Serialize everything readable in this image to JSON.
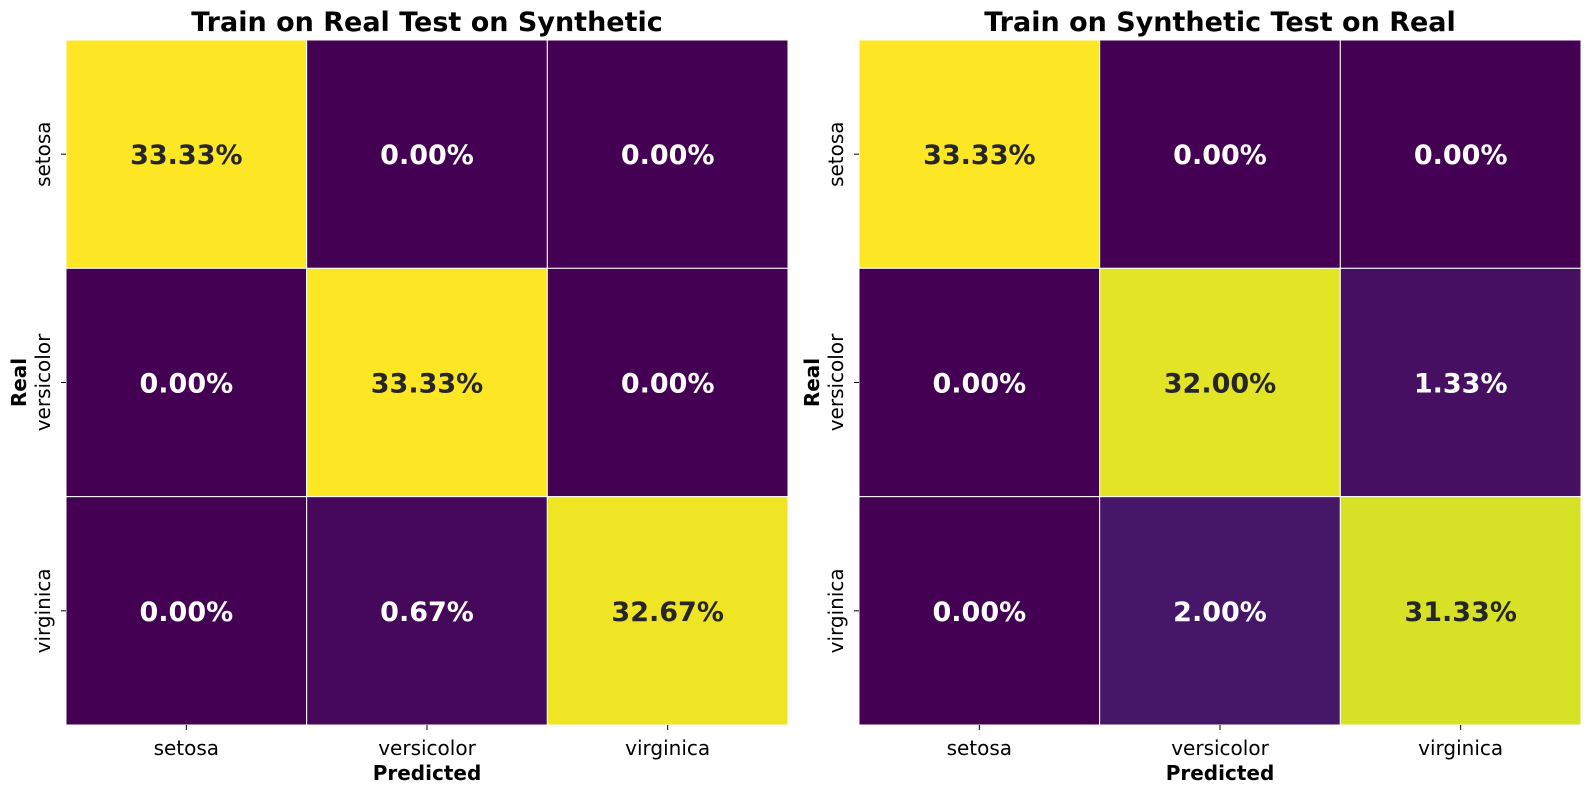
{
  "chart_data": [
    {
      "type": "heatmap",
      "title": "Train on Real Test on Synthetic",
      "xlabel": "Predicted",
      "ylabel": "Real",
      "x_categories": [
        "setosa",
        "versicolor",
        "virginica"
      ],
      "y_categories": [
        "setosa",
        "versicolor",
        "virginica"
      ],
      "values": [
        [
          33.33,
          0.0,
          0.0
        ],
        [
          0.0,
          33.33,
          0.0
        ],
        [
          0.0,
          0.67,
          32.67
        ]
      ],
      "labels": [
        [
          "33.33%",
          "0.00%",
          "0.00%"
        ],
        [
          "0.00%",
          "33.33%",
          "0.00%"
        ],
        [
          "0.00%",
          "0.67%",
          "32.67%"
        ]
      ],
      "colormap": "viridis",
      "color_range": [
        0,
        33.33
      ],
      "light_text_color": "#ffffff",
      "dark_text_color": "#262626",
      "grid": false,
      "colorbar": false
    },
    {
      "type": "heatmap",
      "title": "Train on Synthetic Test on Real",
      "xlabel": "Predicted",
      "ylabel": "Real",
      "x_categories": [
        "setosa",
        "versicolor",
        "virginica"
      ],
      "y_categories": [
        "setosa",
        "versicolor",
        "virginica"
      ],
      "values": [
        [
          33.33,
          0.0,
          0.0
        ],
        [
          0.0,
          32.0,
          1.33
        ],
        [
          0.0,
          2.0,
          31.33
        ]
      ],
      "labels": [
        [
          "33.33%",
          "0.00%",
          "0.00%"
        ],
        [
          "0.00%",
          "32.00%",
          "1.33%"
        ],
        [
          "0.00%",
          "2.00%",
          "31.33%"
        ]
      ],
      "colormap": "viridis",
      "color_range": [
        0,
        33.33
      ],
      "light_text_color": "#ffffff",
      "dark_text_color": "#262626",
      "grid": false,
      "colorbar": false
    }
  ]
}
